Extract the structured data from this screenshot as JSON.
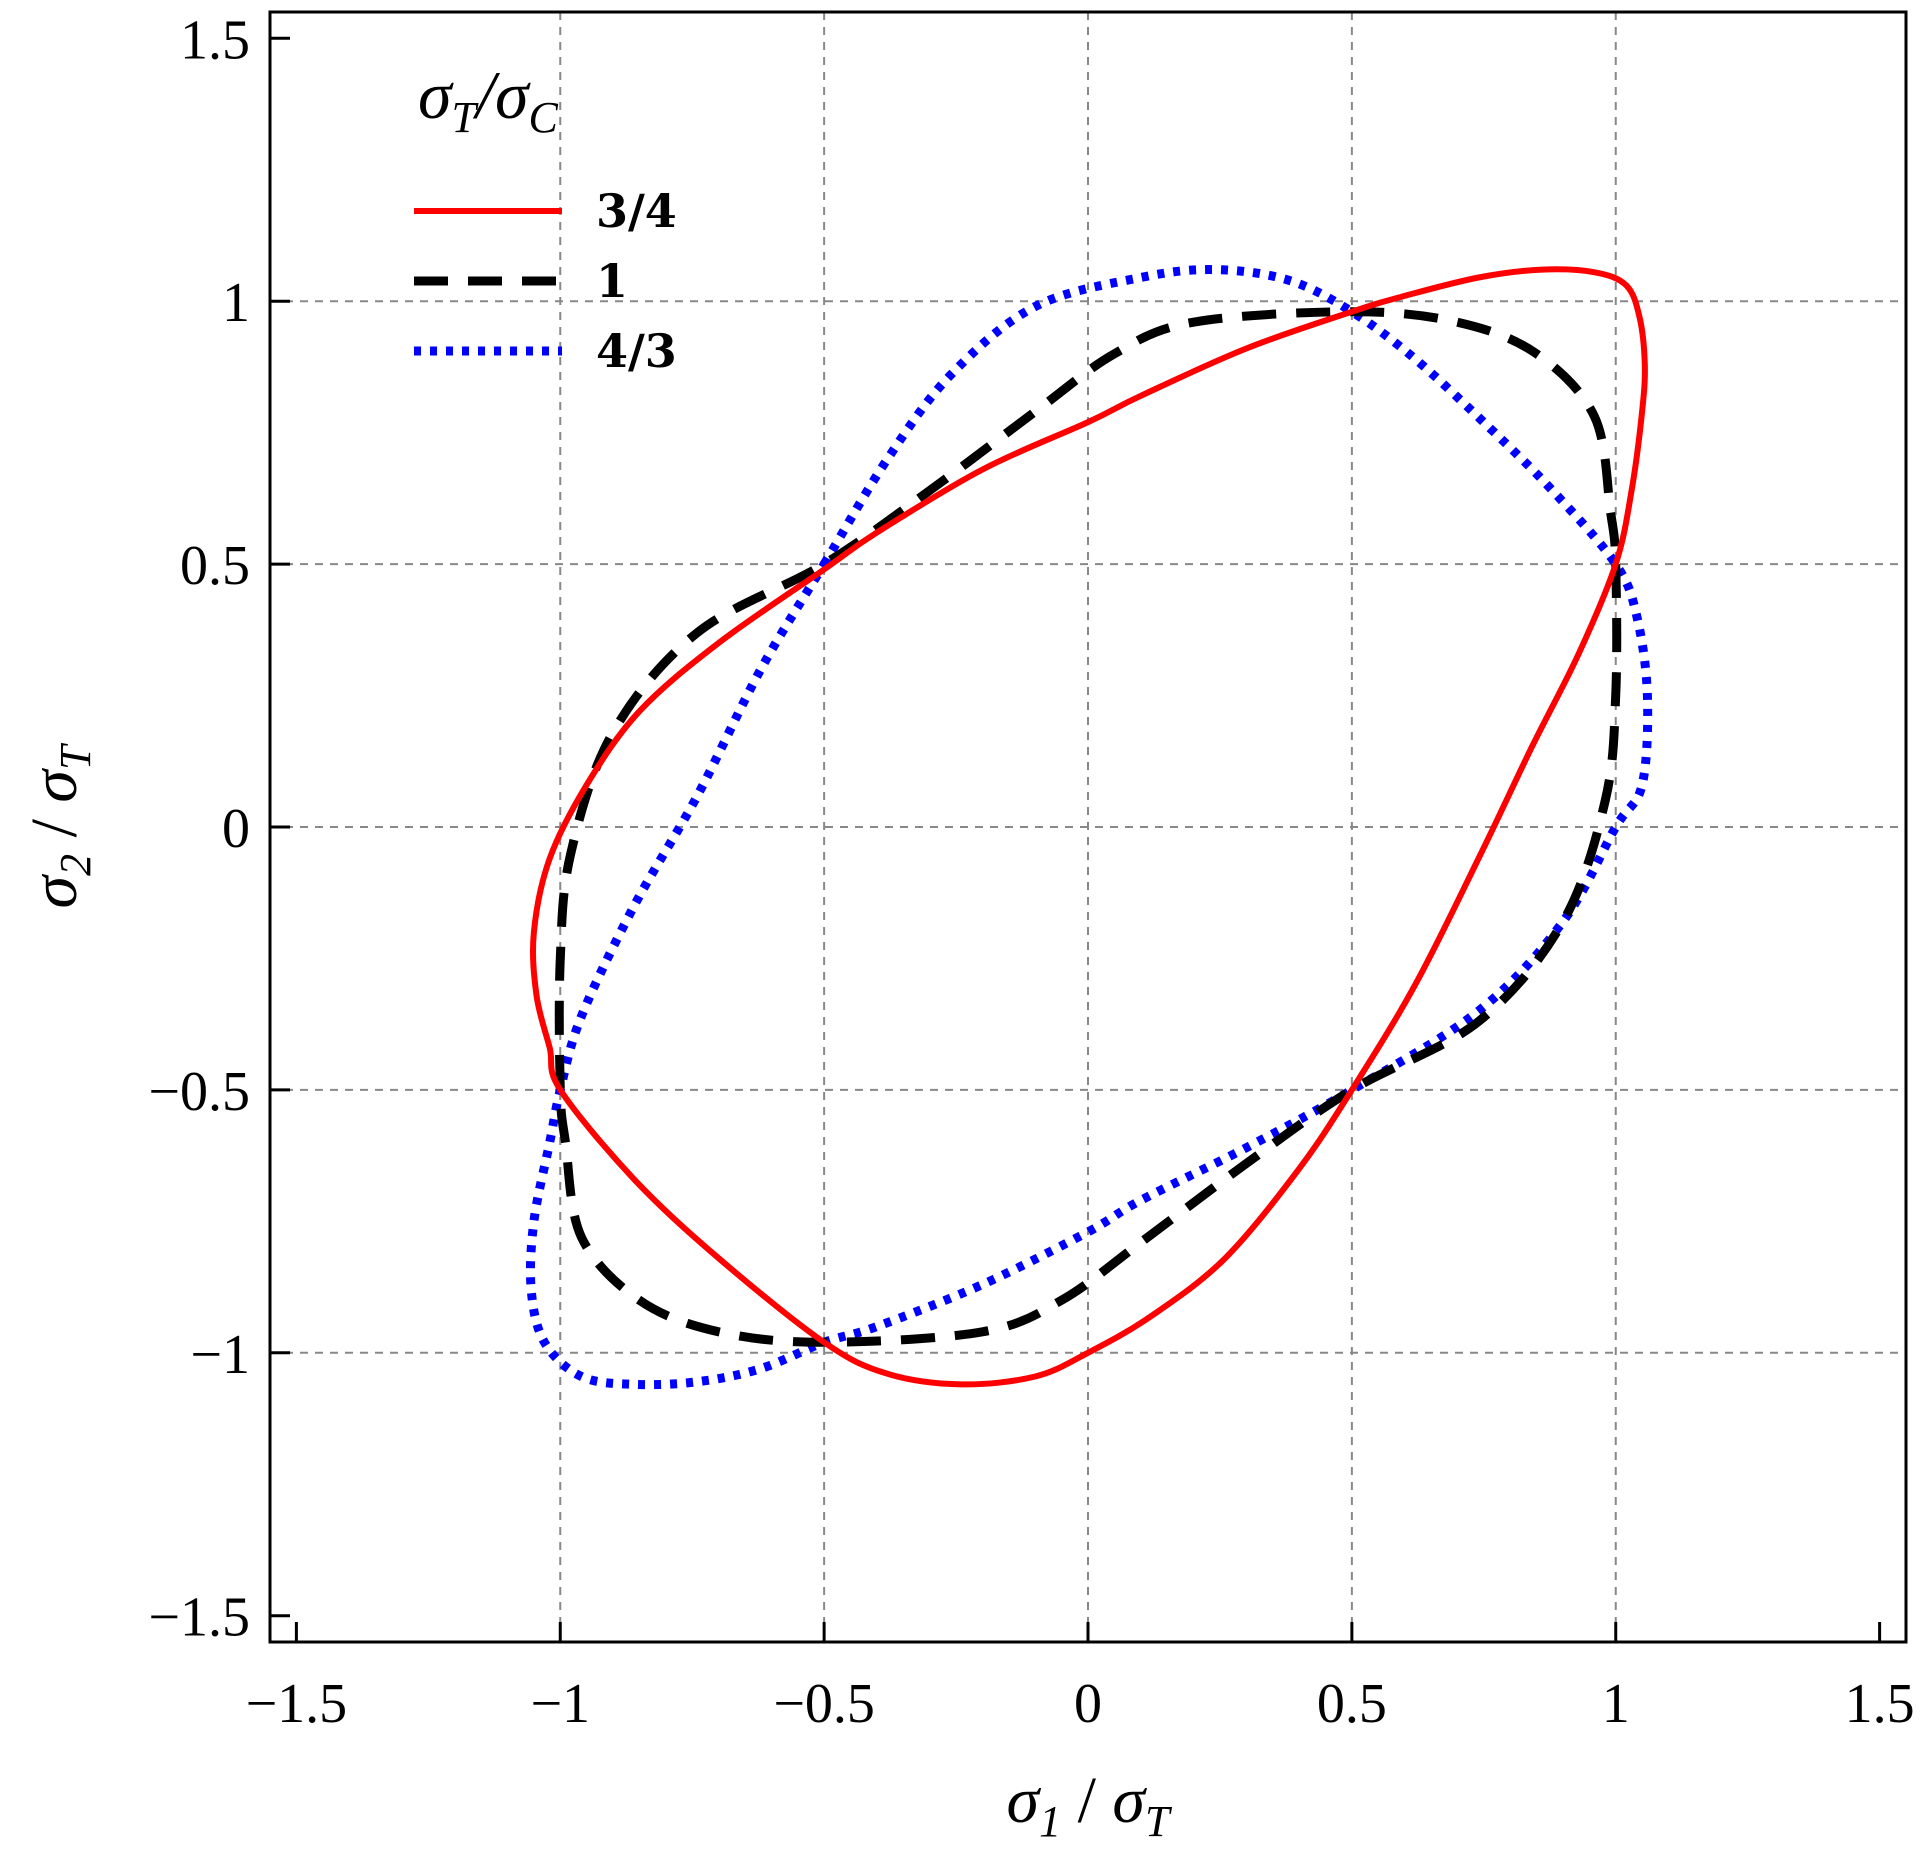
{
  "chart_data": {
    "type": "line",
    "title": "",
    "xlabel": {
      "var": "σ",
      "var_sub": "1",
      "sep": " / ",
      "norm": "σ",
      "norm_sub": "T"
    },
    "ylabel": {
      "var": "σ",
      "var_sub": "2",
      "sep": " / ",
      "norm": "σ",
      "norm_sub": "T"
    },
    "xlim": [
      -1.55,
      1.55
    ],
    "ylim": [
      -1.55,
      1.55
    ],
    "x_ticks": [
      -1.5,
      -1,
      -0.5,
      0,
      0.5,
      1,
      1.5
    ],
    "y_ticks": [
      -1.5,
      -1,
      -0.5,
      0,
      0.5,
      1,
      1.5
    ],
    "x_tick_labels": [
      "−1.5",
      "−1",
      "−0.5",
      "0",
      "0.5",
      "1",
      "1.5"
    ],
    "y_tick_labels": [
      "−1.5",
      "−1",
      "−0.5",
      "0",
      "0.5",
      "1",
      "1.5"
    ],
    "grid": true,
    "legend": {
      "placement": "top-left",
      "title": {
        "a": "σ",
        "a_sub": "T",
        "sep": "/",
        "b": "σ",
        "b_sub": "C"
      }
    },
    "series": [
      {
        "name": "3/4",
        "color": "#ff0000",
        "style": "solid",
        "points": [
          [
            1.0,
            0.5
          ],
          [
            1.03,
            0.64
          ],
          [
            1.05,
            0.79
          ],
          [
            1.055,
            0.88
          ],
          [
            1.045,
            0.97
          ],
          [
            1.02,
            1.03
          ],
          [
            0.96,
            1.055
          ],
          [
            0.86,
            1.06
          ],
          [
            0.74,
            1.045
          ],
          [
            0.6,
            1.01
          ],
          [
            0.5,
            0.98
          ],
          [
            0.3,
            0.91
          ],
          [
            0.1,
            0.82
          ],
          [
            0.0,
            0.77
          ],
          [
            -0.2,
            0.68
          ],
          [
            -0.4,
            0.56
          ],
          [
            -0.5,
            0.49
          ],
          [
            -0.7,
            0.35
          ],
          [
            -0.85,
            0.22
          ],
          [
            -0.95,
            0.08
          ],
          [
            -1.02,
            -0.06
          ],
          [
            -1.05,
            -0.2
          ],
          [
            -1.045,
            -0.32
          ],
          [
            -1.02,
            -0.42
          ],
          [
            -1.0,
            -0.5
          ],
          [
            -0.86,
            -0.67
          ],
          [
            -0.7,
            -0.82
          ],
          [
            -0.5,
            -0.98
          ],
          [
            -0.38,
            -1.04
          ],
          [
            -0.24,
            -1.06
          ],
          [
            -0.1,
            -1.045
          ],
          [
            0.0,
            -1.0
          ],
          [
            0.12,
            -0.93
          ],
          [
            0.26,
            -0.82
          ],
          [
            0.4,
            -0.65
          ],
          [
            0.5,
            -0.5
          ],
          [
            0.62,
            -0.3
          ],
          [
            0.74,
            -0.06
          ],
          [
            0.84,
            0.15
          ],
          [
            0.93,
            0.33
          ],
          [
            1.0,
            0.5
          ]
        ]
      },
      {
        "name": "1",
        "color": "#000000",
        "style": "dashed",
        "points": [
          [
            1.0,
            0.5
          ],
          [
            1.0,
            0.25
          ],
          [
            0.98,
            0.05
          ],
          [
            0.9,
            -0.18
          ],
          [
            0.74,
            -0.37
          ],
          [
            0.5,
            -0.5
          ],
          [
            0.3,
            -0.64
          ],
          [
            0.1,
            -0.79
          ],
          [
            -0.05,
            -0.9
          ],
          [
            -0.2,
            -0.96
          ],
          [
            -0.5,
            -0.98
          ],
          [
            -0.7,
            -0.96
          ],
          [
            -0.85,
            -0.9
          ],
          [
            -0.96,
            -0.78
          ],
          [
            -0.99,
            -0.6
          ],
          [
            -1.0,
            -0.5
          ],
          [
            -1.0,
            -0.25
          ],
          [
            -0.98,
            -0.05
          ],
          [
            -0.9,
            0.18
          ],
          [
            -0.74,
            0.37
          ],
          [
            -0.5,
            0.5
          ],
          [
            -0.3,
            0.64
          ],
          [
            -0.1,
            0.79
          ],
          [
            0.05,
            0.9
          ],
          [
            0.2,
            0.96
          ],
          [
            0.5,
            0.98
          ],
          [
            0.7,
            0.96
          ],
          [
            0.85,
            0.9
          ],
          [
            0.96,
            0.78
          ],
          [
            0.99,
            0.6
          ],
          [
            1.0,
            0.5
          ]
        ]
      },
      {
        "name": "4/3",
        "color": "#0000ff",
        "style": "dotted",
        "points": [
          [
            -0.5,
            0.5
          ],
          [
            -0.38,
            0.7
          ],
          [
            -0.26,
            0.86
          ],
          [
            -0.1,
            0.99
          ],
          [
            0.1,
            1.045
          ],
          [
            0.24,
            1.06
          ],
          [
            0.38,
            1.04
          ],
          [
            0.5,
            0.98
          ],
          [
            0.62,
            0.89
          ],
          [
            0.76,
            0.76
          ],
          [
            0.88,
            0.64
          ],
          [
            1.0,
            0.5
          ],
          [
            1.04,
            0.4
          ],
          [
            1.06,
            0.25
          ],
          [
            1.05,
            0.08
          ],
          [
            1.0,
            0.0
          ],
          [
            0.9,
            -0.18
          ],
          [
            0.74,
            -0.35
          ],
          [
            0.5,
            -0.5
          ],
          [
            0.3,
            -0.61
          ],
          [
            0.1,
            -0.71
          ],
          [
            0.0,
            -0.77
          ],
          [
            -0.2,
            -0.87
          ],
          [
            -0.4,
            -0.95
          ],
          [
            -0.5,
            -0.98
          ],
          [
            -0.62,
            -1.03
          ],
          [
            -0.74,
            -1.055
          ],
          [
            -0.86,
            -1.06
          ],
          [
            -0.96,
            -1.045
          ],
          [
            -1.03,
            -0.98
          ],
          [
            -1.055,
            -0.88
          ],
          [
            -1.05,
            -0.75
          ],
          [
            -1.02,
            -0.6
          ],
          [
            -1.0,
            -0.5
          ],
          [
            -0.96,
            -0.36
          ],
          [
            -0.86,
            -0.15
          ],
          [
            -0.74,
            0.06
          ],
          [
            -0.62,
            0.3
          ],
          [
            -0.5,
            0.5
          ]
        ]
      }
    ]
  }
}
